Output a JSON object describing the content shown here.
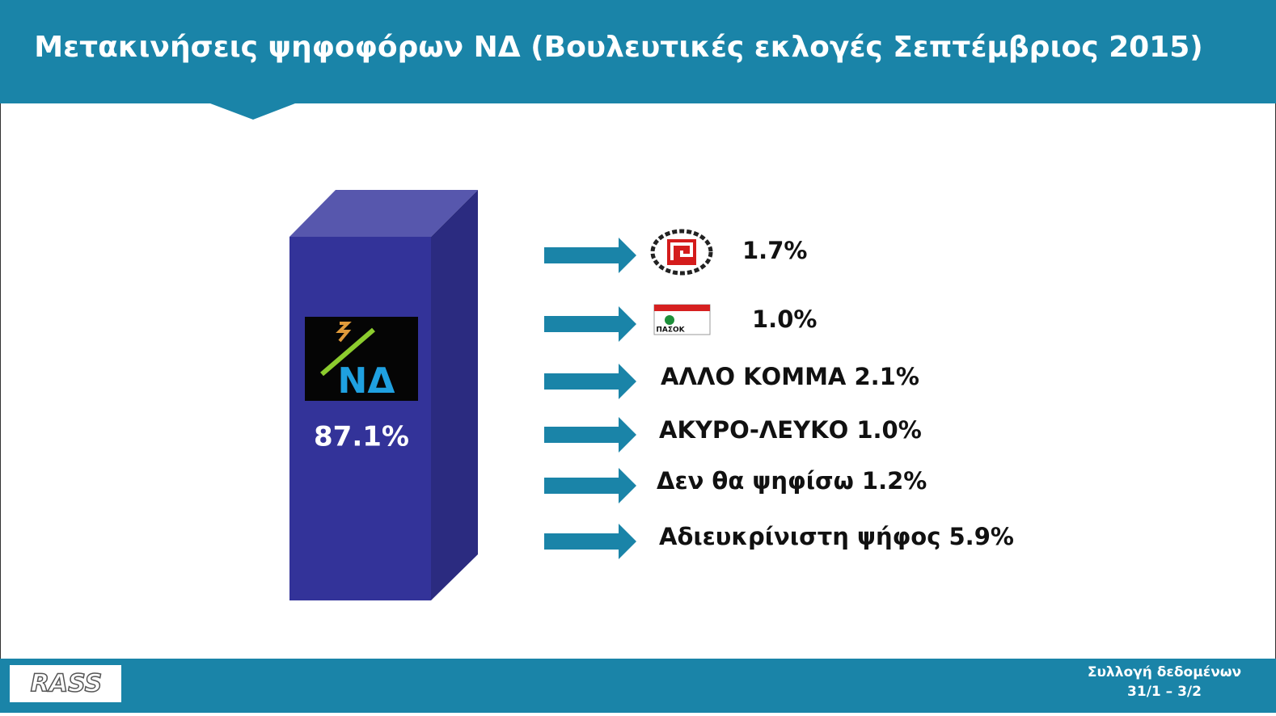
{
  "header": {
    "title": "Μετακινήσεις ψηφοφόρων ΝΔ (Βουλευτικές εκλογές Σεπτέμβριος 2015)"
  },
  "main": {
    "logo": "ΝΔ",
    "value": "87.1%"
  },
  "flows": [
    {
      "label": "1.7%"
    },
    {
      "logo": "ΠΑΣΟΚ",
      "label": "1.0%"
    },
    {
      "label": "ΑΛΛΟ ΚΟΜΜΑ 2.1%"
    },
    {
      "label": "ΑΚΥΡΟ-ΛΕΥΚΟ 1.0%"
    },
    {
      "label": "Δεν θα ψηφίσω 1.2%"
    },
    {
      "label": "Αδιευκρίνιστη ψήφος 5.9%"
    }
  ],
  "footer": {
    "logo": "RASS",
    "note": [
      "Συλλογή δεδομένων",
      "31/1 – 3/2"
    ]
  }
}
